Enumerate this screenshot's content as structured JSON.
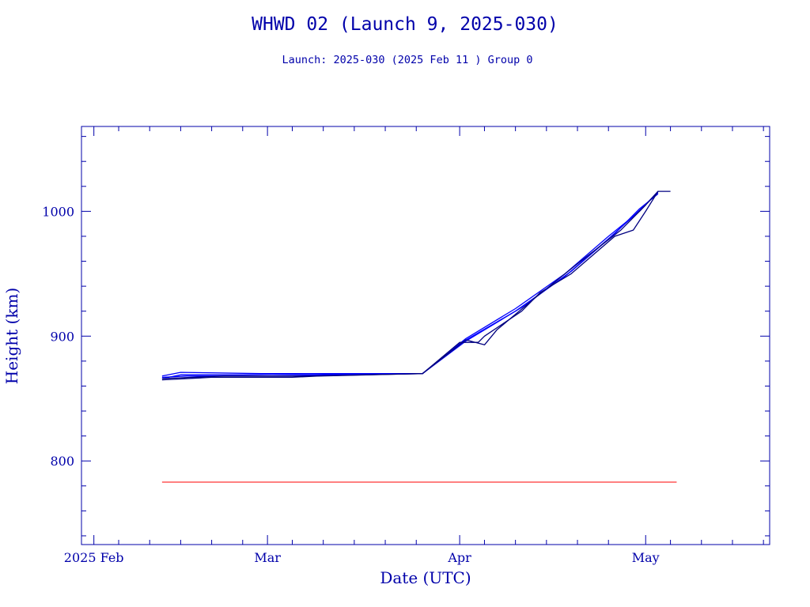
{
  "chart_data": {
    "type": "line",
    "title": "WHWD 02 (Launch 9, 2025-030)",
    "subtitle": "Launch: 2025-030  (2025 Feb 11 )  Group 0",
    "xlabel": "Date (UTC)",
    "ylabel": "Height (km)",
    "xlim": [
      "2025-01-30",
      "2025-05-21"
    ],
    "ylim": [
      733,
      1068
    ],
    "x_ticks": [
      {
        "date": "2025-02-01",
        "label": "2025 Feb"
      },
      {
        "date": "2025-03-01",
        "label": "Mar"
      },
      {
        "date": "2025-04-01",
        "label": "Apr"
      },
      {
        "date": "2025-05-01",
        "label": "May"
      }
    ],
    "y_ticks": [
      800,
      900,
      1000
    ],
    "grid": false,
    "colors": {
      "axes": "#0000aa",
      "series_blue": "#0000ff",
      "series_dark": "#000080",
      "reference": "#ff0000"
    },
    "series": [
      {
        "color": "#0000ff",
        "points": [
          [
            "2025-02-12",
            866
          ],
          [
            "2025-02-15",
            869
          ],
          [
            "2025-02-25",
            869
          ],
          [
            "2025-03-12",
            870
          ],
          [
            "2025-03-26",
            870
          ],
          [
            "2025-04-01",
            894
          ],
          [
            "2025-04-10",
            920
          ],
          [
            "2025-04-18",
            948
          ],
          [
            "2025-04-25",
            978
          ],
          [
            "2025-04-29",
            996
          ],
          [
            "2025-05-03",
            1015
          ]
        ]
      },
      {
        "color": "#0000ff",
        "points": [
          [
            "2025-02-12",
            868
          ],
          [
            "2025-02-15",
            871
          ],
          [
            "2025-02-28",
            870
          ],
          [
            "2025-03-12",
            870
          ],
          [
            "2025-03-26",
            870
          ],
          [
            "2025-04-02",
            898
          ],
          [
            "2025-04-10",
            922
          ],
          [
            "2025-04-18",
            950
          ],
          [
            "2025-04-25",
            980
          ],
          [
            "2025-04-30",
            1000
          ],
          [
            "2025-05-03",
            1016
          ]
        ]
      },
      {
        "color": "#0000ff",
        "points": [
          [
            "2025-02-12",
            867
          ],
          [
            "2025-02-16",
            868
          ],
          [
            "2025-03-01",
            868
          ],
          [
            "2025-03-10",
            869
          ],
          [
            "2025-03-26",
            870
          ],
          [
            "2025-04-02",
            896
          ],
          [
            "2025-04-11",
            923
          ],
          [
            "2025-04-19",
            952
          ],
          [
            "2025-04-26",
            982
          ],
          [
            "2025-04-30",
            1002
          ],
          [
            "2025-05-03",
            1014
          ]
        ]
      },
      {
        "color": "#000080",
        "points": [
          [
            "2025-02-12",
            865
          ],
          [
            "2025-02-20",
            867
          ],
          [
            "2025-03-05",
            867
          ],
          [
            "2025-03-09",
            868
          ],
          [
            "2025-03-26",
            870
          ],
          [
            "2025-04-01",
            895
          ],
          [
            "2025-04-04",
            895
          ],
          [
            "2025-04-05",
            900
          ],
          [
            "2025-04-11",
            920
          ],
          [
            "2025-04-14",
            935
          ],
          [
            "2025-04-19",
            950
          ],
          [
            "2025-04-26",
            980
          ],
          [
            "2025-04-29",
            985
          ],
          [
            "2025-05-01",
            1000
          ],
          [
            "2025-05-03",
            1016
          ]
        ]
      },
      {
        "color": "#000080",
        "points": [
          [
            "2025-02-12",
            866
          ],
          [
            "2025-02-22",
            868
          ],
          [
            "2025-03-07",
            868
          ],
          [
            "2025-03-26",
            870
          ],
          [
            "2025-04-02",
            897
          ],
          [
            "2025-04-05",
            893
          ],
          [
            "2025-04-07",
            905
          ],
          [
            "2025-04-13",
            930
          ],
          [
            "2025-04-20",
            958
          ],
          [
            "2025-04-27",
            985
          ],
          [
            "2025-05-01",
            1005
          ],
          [
            "2025-05-03",
            1016
          ],
          [
            "2025-05-05",
            1016
          ]
        ]
      }
    ],
    "reference_line": {
      "color": "#ff0000",
      "y": 783,
      "x": [
        "2025-02-12",
        "2025-05-06"
      ]
    }
  }
}
